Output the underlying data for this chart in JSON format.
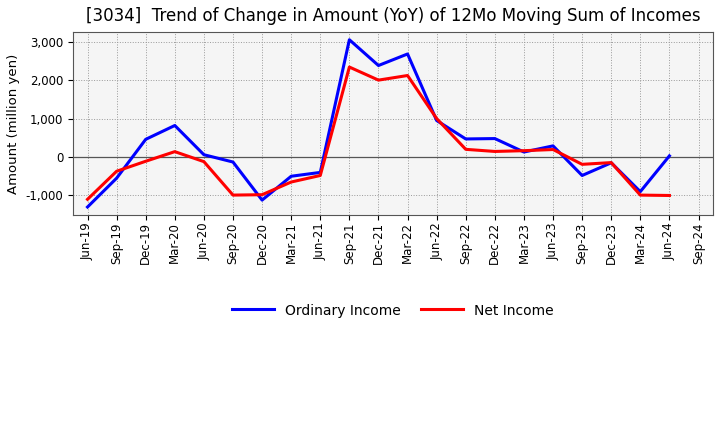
{
  "title": "[3034]  Trend of Change in Amount (YoY) of 12Mo Moving Sum of Incomes",
  "ylabel": "Amount (million yen)",
  "labels": [
    "Jun-19",
    "Sep-19",
    "Dec-19",
    "Mar-20",
    "Jun-20",
    "Sep-20",
    "Dec-20",
    "Mar-21",
    "Jun-21",
    "Sep-21",
    "Dec-21",
    "Mar-22",
    "Jun-22",
    "Sep-22",
    "Dec-22",
    "Mar-23",
    "Jun-23",
    "Sep-23",
    "Dec-23",
    "Mar-24",
    "Jun-24",
    "Sep-24"
  ],
  "ordinary_income": [
    -1300,
    -550,
    460,
    820,
    60,
    -130,
    -1120,
    -500,
    -400,
    3050,
    2380,
    2680,
    950,
    470,
    480,
    130,
    290,
    -480,
    -150,
    -900,
    30,
    null
  ],
  "net_income": [
    -1100,
    -370,
    -110,
    140,
    -120,
    -990,
    -980,
    -650,
    -480,
    2340,
    2000,
    2120,
    1000,
    200,
    145,
    165,
    195,
    -190,
    -145,
    -990,
    -1000,
    null
  ],
  "ordinary_color": "#0000ff",
  "net_color": "#ff0000",
  "background_color": "#ffffff",
  "plot_bg_color": "#f5f5f5",
  "grid_color": "#999999",
  "zero_line_color": "#555555",
  "spine_color": "#555555",
  "ylim": [
    -1500,
    3250
  ],
  "yticks": [
    -1000,
    0,
    1000,
    2000,
    3000
  ],
  "line_width": 2.2,
  "title_fontsize": 12,
  "axis_fontsize": 9.5,
  "tick_fontsize": 8.5,
  "legend_fontsize": 10
}
